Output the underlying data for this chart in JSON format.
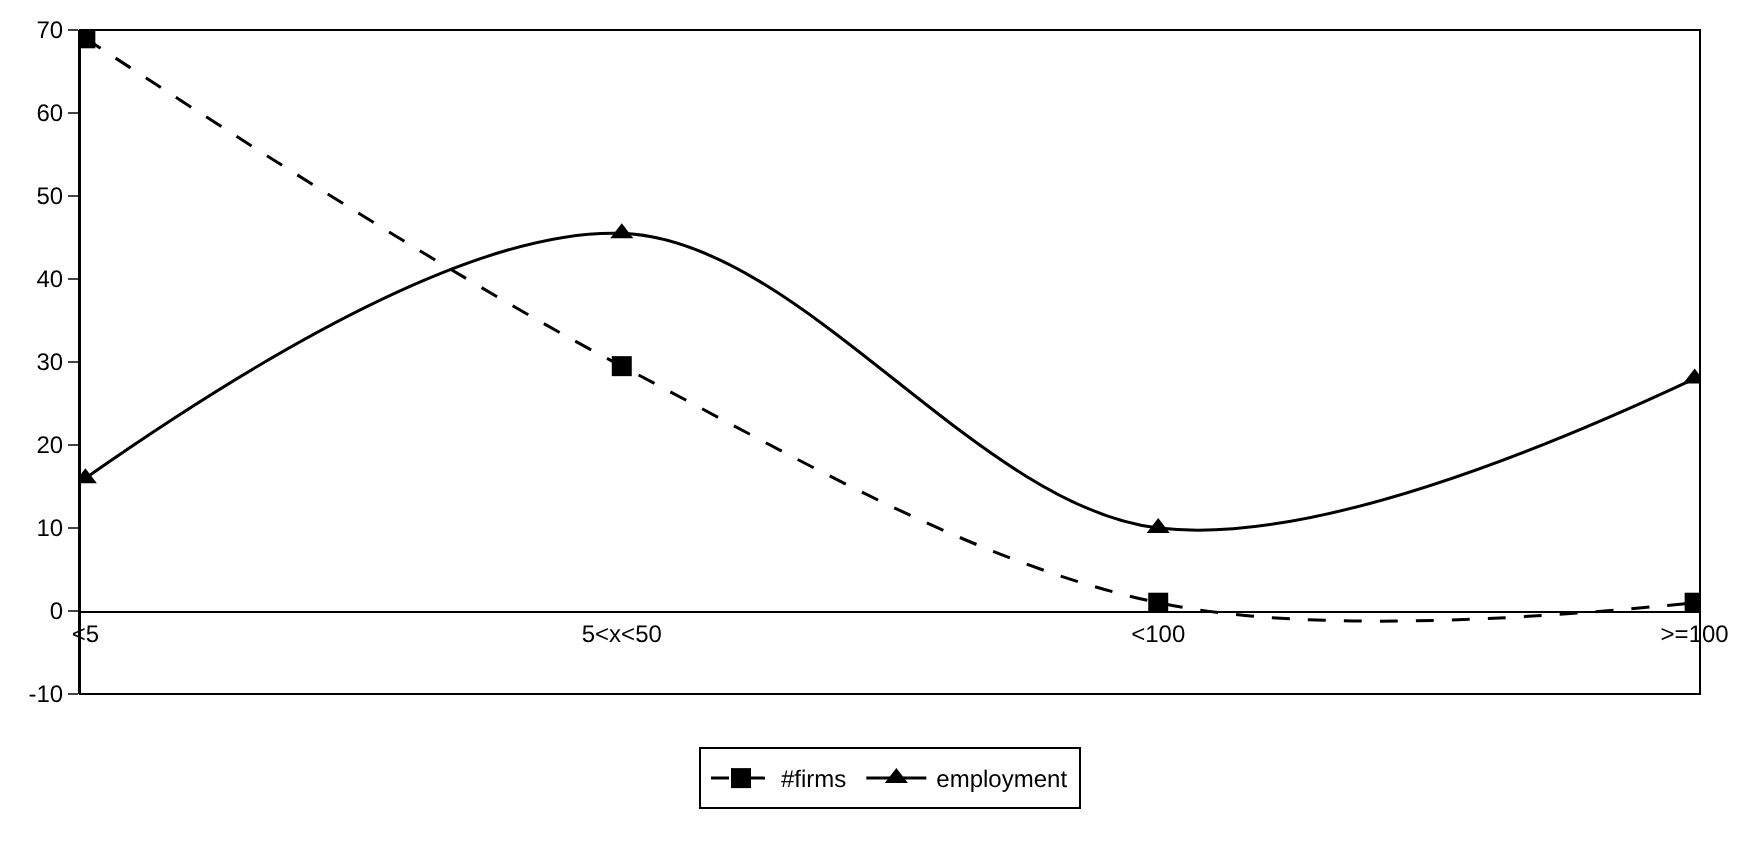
{
  "chart_data": {
    "type": "line",
    "categories": [
      "<5",
      "5<x<50",
      "<100",
      ">=100"
    ],
    "series": [
      {
        "name": "#firms",
        "color": "#000000",
        "values": [
          69,
          29.5,
          1,
          1
        ],
        "marker": "square",
        "line_style": "dashed"
      },
      {
        "name": "employment",
        "color": "#000000",
        "values": [
          16,
          45.5,
          10,
          28
        ],
        "marker": "triangle",
        "line_style": "solid"
      }
    ],
    "ylim": [
      -10,
      70
    ],
    "yticks": [
      -10,
      0,
      10,
      20,
      30,
      40,
      50,
      60,
      70
    ],
    "grid": false,
    "legend": "bottom"
  }
}
